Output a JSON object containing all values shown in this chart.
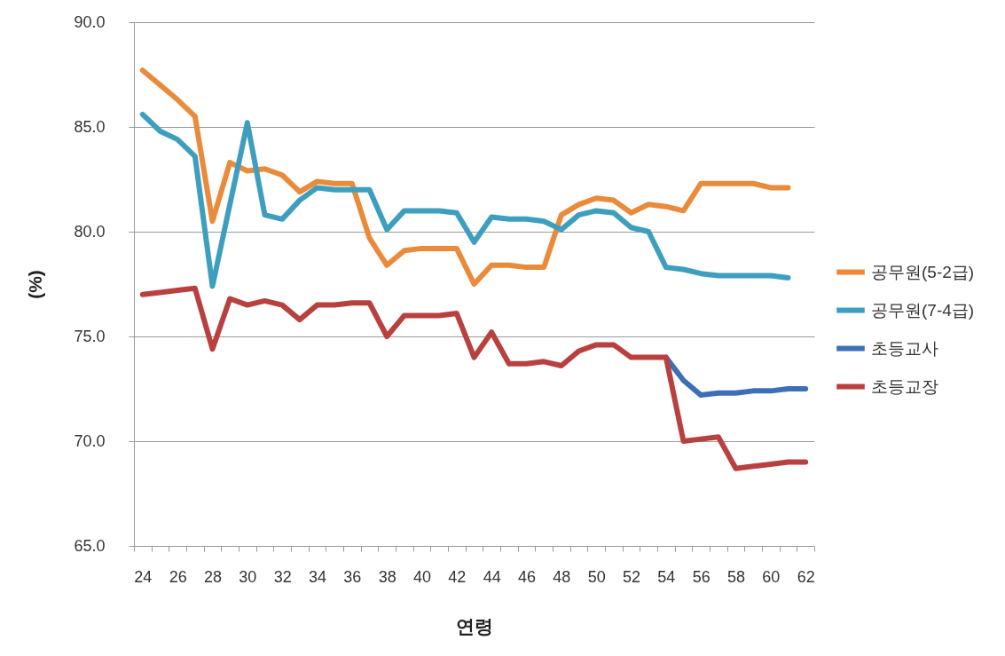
{
  "chart_data": {
    "type": "line",
    "xlabel": "연령",
    "ylabel": "(%)",
    "categories": [
      "24",
      null,
      "26",
      null,
      "28",
      null,
      "30",
      null,
      "32",
      null,
      "34",
      null,
      "36",
      null,
      "38",
      null,
      "40",
      null,
      "42",
      null,
      "44",
      null,
      "46",
      null,
      "48",
      null,
      "50",
      null,
      "52",
      null,
      "54",
      null,
      "56",
      null,
      "58",
      null,
      "60",
      null,
      "62"
    ],
    "series": [
      {
        "name": "공무원(5-2급)",
        "color": "#e98b3a",
        "values": [
          87.7,
          87.0,
          86.3,
          85.5,
          80.5,
          83.3,
          82.9,
          83.0,
          82.7,
          81.9,
          82.4,
          82.3,
          82.3,
          79.7,
          78.4,
          79.1,
          79.2,
          79.2,
          79.2,
          77.5,
          78.4,
          78.4,
          78.3,
          78.3,
          80.8,
          81.3,
          81.6,
          81.5,
          80.9,
          81.3,
          81.2,
          81.0,
          82.3,
          82.3,
          82.3,
          82.3,
          82.1,
          82.1,
          null
        ]
      },
      {
        "name": "공무원(7-4급)",
        "color": "#3d9fbd",
        "values": [
          85.6,
          84.8,
          84.4,
          83.6,
          77.4,
          81.3,
          85.2,
          80.8,
          80.6,
          81.5,
          82.1,
          82.0,
          82.0,
          82.0,
          80.1,
          81.0,
          81.0,
          81.0,
          80.9,
          79.5,
          80.7,
          80.6,
          80.6,
          80.5,
          80.1,
          80.8,
          81.0,
          80.9,
          80.2,
          80.0,
          78.3,
          78.2,
          78.0,
          77.9,
          77.9,
          77.9,
          77.9,
          77.8,
          null
        ]
      },
      {
        "name": "초등교사",
        "color": "#3e6fb6",
        "values": [
          null,
          null,
          null,
          null,
          null,
          null,
          null,
          null,
          null,
          null,
          null,
          null,
          null,
          null,
          null,
          null,
          null,
          null,
          null,
          null,
          null,
          null,
          null,
          null,
          null,
          null,
          null,
          null,
          null,
          null,
          74.0,
          72.9,
          72.2,
          72.3,
          72.3,
          72.4,
          72.4,
          72.5,
          72.5
        ]
      },
      {
        "name": "초등교장",
        "color": "#b8413f",
        "values": [
          77.0,
          77.1,
          77.2,
          77.3,
          74.4,
          76.8,
          76.5,
          76.7,
          76.5,
          75.8,
          76.5,
          76.5,
          76.6,
          76.6,
          75.0,
          76.0,
          76.0,
          76.0,
          76.1,
          74.0,
          75.2,
          73.7,
          73.7,
          73.8,
          73.6,
          74.3,
          74.6,
          74.6,
          74.0,
          74.0,
          74.0,
          70.0,
          70.1,
          70.2,
          68.7,
          68.8,
          68.9,
          69.0,
          69.0
        ]
      }
    ],
    "ylim": [
      65,
      90
    ],
    "yticks": [
      {
        "value": 65,
        "label": "65.0"
      },
      {
        "value": 70,
        "label": "70.0"
      },
      {
        "value": 75,
        "label": "75.0"
      },
      {
        "value": 80,
        "label": "80.0"
      },
      {
        "value": 85,
        "label": "85.0"
      },
      {
        "value": 90,
        "label": "90.0"
      }
    ],
    "grid": "y",
    "legend": "right"
  }
}
